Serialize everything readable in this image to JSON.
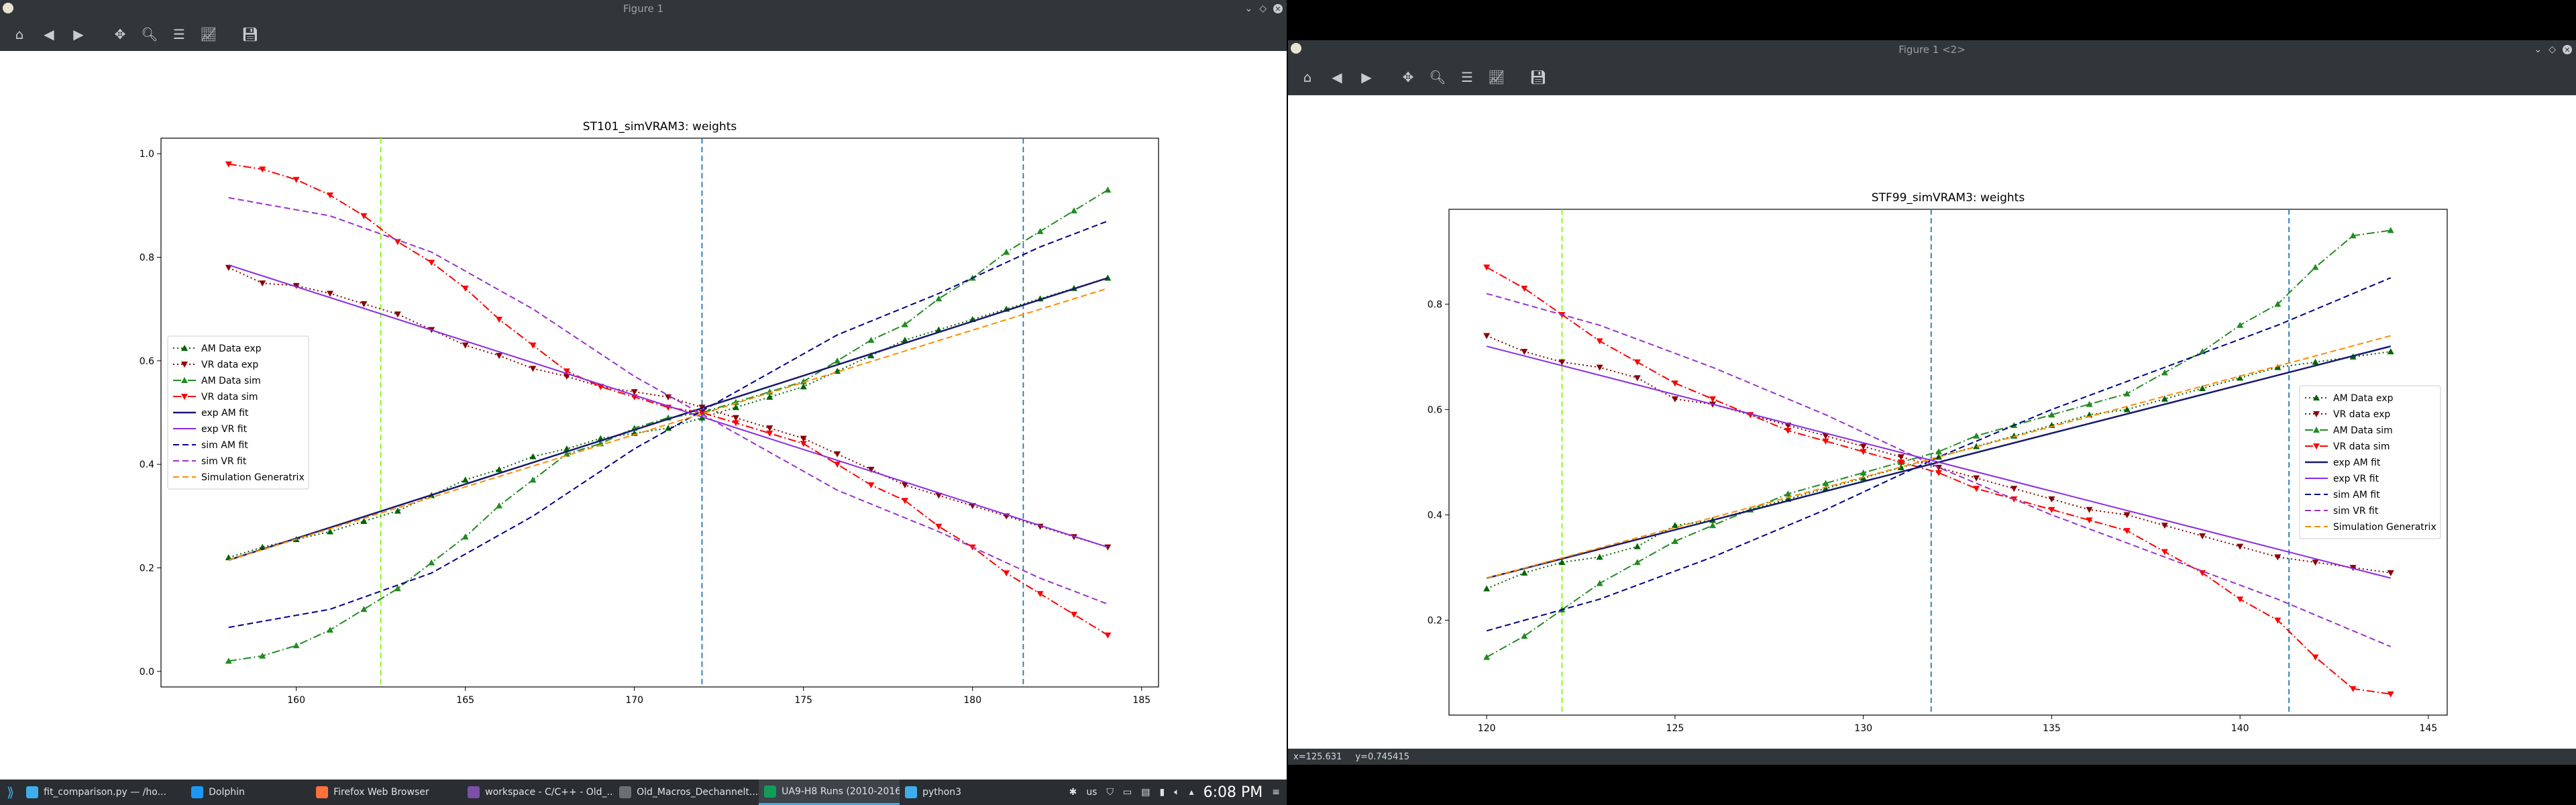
{
  "window1": {
    "title": "Figure 1",
    "toolbar_icons": [
      "home-icon",
      "back-icon",
      "forward-icon",
      "pan-icon",
      "zoom-icon",
      "subplots-icon",
      "edit-axis-icon",
      "save-icon"
    ],
    "status": ""
  },
  "window2": {
    "title": "Figure 1 <2>",
    "toolbar_icons": [
      "home-icon",
      "back-icon",
      "forward-icon",
      "pan-icon",
      "zoom-icon",
      "subplots-icon",
      "edit-axis-icon",
      "save-icon"
    ],
    "status_x": "x=125.631",
    "status_y": "y=0.745415"
  },
  "legend_labels": [
    "AM Data exp",
    "VR data exp",
    "AM Data sim",
    "VR data sim",
    "exp AM fit",
    "exp VR fit",
    "sim AM fit",
    "sim VR fit",
    "Simulation Generatrix"
  ],
  "colors": {
    "am_exp": "#006400",
    "vr_exp": "#8b0000",
    "am_sim": "#228b22",
    "vr_sim": "#ff0000",
    "exp_am_fit": "#191970",
    "exp_vr_fit": "#8a2be2",
    "sim_am_fit": "#00008b",
    "sim_vr_fit": "#9932cc",
    "generatrix": "#ff8c00",
    "vline_green": "#7fff00",
    "vline_blue": "#1f77b4"
  },
  "chart_data": [
    {
      "type": "line",
      "title": "ST101_simVRAM3: weights",
      "xlim": [
        156,
        185.5
      ],
      "ylim": [
        -0.03,
        1.03
      ],
      "xticks": [
        160,
        165,
        170,
        175,
        180,
        185
      ],
      "yticks": [
        0.0,
        0.2,
        0.4,
        0.6,
        0.8,
        1.0
      ],
      "vlines": [
        {
          "x": 162.5,
          "color": "green"
        },
        {
          "x": 172,
          "color": "blue"
        },
        {
          "x": 181.5,
          "color": "blue"
        }
      ],
      "legend_position": "center-left",
      "series": [
        {
          "name": "AM Data exp",
          "x": [
            158,
            159,
            160,
            161,
            162,
            163,
            164,
            165,
            166,
            167,
            168,
            169,
            170,
            171,
            172,
            173,
            174,
            175,
            176,
            177,
            178,
            179,
            180,
            181,
            182,
            183,
            184
          ],
          "y": [
            0.22,
            0.24,
            0.255,
            0.27,
            0.29,
            0.31,
            0.34,
            0.37,
            0.39,
            0.415,
            0.43,
            0.45,
            0.46,
            0.47,
            0.49,
            0.51,
            0.53,
            0.55,
            0.58,
            0.61,
            0.64,
            0.66,
            0.68,
            0.7,
            0.72,
            0.74,
            0.76
          ]
        },
        {
          "name": "VR data exp",
          "x": [
            158,
            159,
            160,
            161,
            162,
            163,
            164,
            165,
            166,
            167,
            168,
            169,
            170,
            171,
            172,
            173,
            174,
            175,
            176,
            177,
            178,
            179,
            180,
            181,
            182,
            183,
            184
          ],
          "y": [
            0.78,
            0.75,
            0.745,
            0.73,
            0.71,
            0.69,
            0.66,
            0.63,
            0.61,
            0.585,
            0.57,
            0.55,
            0.54,
            0.53,
            0.51,
            0.49,
            0.47,
            0.45,
            0.42,
            0.39,
            0.36,
            0.34,
            0.32,
            0.3,
            0.28,
            0.26,
            0.24
          ]
        },
        {
          "name": "AM Data sim",
          "x": [
            158,
            159,
            160,
            161,
            162,
            163,
            164,
            165,
            166,
            167,
            168,
            169,
            170,
            171,
            172,
            173,
            174,
            175,
            176,
            177,
            178,
            179,
            180,
            181,
            182,
            183,
            184
          ],
          "y": [
            0.02,
            0.03,
            0.05,
            0.08,
            0.12,
            0.16,
            0.21,
            0.26,
            0.32,
            0.37,
            0.42,
            0.44,
            0.47,
            0.49,
            0.5,
            0.52,
            0.54,
            0.56,
            0.6,
            0.64,
            0.67,
            0.72,
            0.76,
            0.81,
            0.85,
            0.89,
            0.93
          ]
        },
        {
          "name": "VR data sim",
          "x": [
            158,
            159,
            160,
            161,
            162,
            163,
            164,
            165,
            166,
            167,
            168,
            169,
            170,
            171,
            172,
            173,
            174,
            175,
            176,
            177,
            178,
            179,
            180,
            181,
            182,
            183,
            184
          ],
          "y": [
            0.98,
            0.97,
            0.95,
            0.92,
            0.88,
            0.83,
            0.79,
            0.74,
            0.68,
            0.63,
            0.58,
            0.55,
            0.53,
            0.51,
            0.5,
            0.48,
            0.46,
            0.44,
            0.4,
            0.36,
            0.33,
            0.28,
            0.24,
            0.19,
            0.15,
            0.11,
            0.07
          ]
        },
        {
          "name": "exp AM fit",
          "x": [
            158,
            184
          ],
          "y": [
            0.215,
            0.76
          ]
        },
        {
          "name": "exp VR fit",
          "x": [
            158,
            184
          ],
          "y": [
            0.785,
            0.24
          ]
        },
        {
          "name": "sim AM fit",
          "x": [
            158,
            161,
            164,
            167,
            170,
            173,
            176,
            179,
            182,
            184
          ],
          "y": [
            0.085,
            0.12,
            0.19,
            0.3,
            0.43,
            0.54,
            0.65,
            0.73,
            0.82,
            0.87
          ]
        },
        {
          "name": "sim VR fit",
          "x": [
            158,
            161,
            164,
            167,
            170,
            173,
            176,
            179,
            182,
            184
          ],
          "y": [
            0.915,
            0.88,
            0.81,
            0.7,
            0.57,
            0.46,
            0.35,
            0.27,
            0.18,
            0.13
          ]
        },
        {
          "name": "Simulation Generatrix",
          "x": [
            158,
            184
          ],
          "y": [
            0.215,
            0.74
          ]
        }
      ]
    },
    {
      "type": "line",
      "title": "STF99_simVRAM3: weights",
      "xlim": [
        119,
        145.5
      ],
      "ylim": [
        0.02,
        0.98
      ],
      "xticks": [
        120,
        125,
        130,
        135,
        140,
        145
      ],
      "yticks": [
        0.2,
        0.4,
        0.6,
        0.8
      ],
      "vlines": [
        {
          "x": 122,
          "color": "green"
        },
        {
          "x": 131.8,
          "color": "blue"
        },
        {
          "x": 141.3,
          "color": "blue"
        }
      ],
      "legend_position": "center-right",
      "series": [
        {
          "name": "AM Data exp",
          "x": [
            120,
            121,
            122,
            123,
            124,
            125,
            126,
            127,
            128,
            129,
            130,
            131,
            132,
            133,
            134,
            135,
            136,
            137,
            138,
            139,
            140,
            141,
            142,
            143,
            144
          ],
          "y": [
            0.26,
            0.29,
            0.31,
            0.32,
            0.34,
            0.38,
            0.39,
            0.41,
            0.43,
            0.45,
            0.47,
            0.49,
            0.51,
            0.53,
            0.55,
            0.57,
            0.59,
            0.6,
            0.62,
            0.64,
            0.66,
            0.68,
            0.69,
            0.7,
            0.71
          ]
        },
        {
          "name": "VR data exp",
          "x": [
            120,
            121,
            122,
            123,
            124,
            125,
            126,
            127,
            128,
            129,
            130,
            131,
            132,
            133,
            134,
            135,
            136,
            137,
            138,
            139,
            140,
            141,
            142,
            143,
            144
          ],
          "y": [
            0.74,
            0.71,
            0.69,
            0.68,
            0.66,
            0.62,
            0.61,
            0.59,
            0.57,
            0.55,
            0.53,
            0.51,
            0.49,
            0.47,
            0.45,
            0.43,
            0.41,
            0.4,
            0.38,
            0.36,
            0.34,
            0.32,
            0.31,
            0.3,
            0.29
          ]
        },
        {
          "name": "AM Data sim",
          "x": [
            120,
            121,
            122,
            123,
            124,
            125,
            126,
            127,
            128,
            129,
            130,
            131,
            132,
            133,
            134,
            135,
            136,
            137,
            138,
            139,
            140,
            141,
            142,
            143,
            144
          ],
          "y": [
            0.13,
            0.17,
            0.22,
            0.27,
            0.31,
            0.35,
            0.38,
            0.41,
            0.44,
            0.46,
            0.48,
            0.5,
            0.52,
            0.55,
            0.57,
            0.59,
            0.61,
            0.63,
            0.67,
            0.71,
            0.76,
            0.8,
            0.87,
            0.93,
            0.94
          ]
        },
        {
          "name": "VR data sim",
          "x": [
            120,
            121,
            122,
            123,
            124,
            125,
            126,
            127,
            128,
            129,
            130,
            131,
            132,
            133,
            134,
            135,
            136,
            137,
            138,
            139,
            140,
            141,
            142,
            143,
            144
          ],
          "y": [
            0.87,
            0.83,
            0.78,
            0.73,
            0.69,
            0.65,
            0.62,
            0.59,
            0.56,
            0.54,
            0.52,
            0.5,
            0.48,
            0.45,
            0.43,
            0.41,
            0.39,
            0.37,
            0.33,
            0.29,
            0.24,
            0.2,
            0.13,
            0.07,
            0.06
          ]
        },
        {
          "name": "exp AM fit",
          "x": [
            120,
            144
          ],
          "y": [
            0.28,
            0.72
          ]
        },
        {
          "name": "exp VR fit",
          "x": [
            120,
            144
          ],
          "y": [
            0.72,
            0.28
          ]
        },
        {
          "name": "sim AM fit",
          "x": [
            120,
            123,
            126,
            129,
            132,
            135,
            138,
            141,
            144
          ],
          "y": [
            0.18,
            0.24,
            0.32,
            0.41,
            0.51,
            0.6,
            0.68,
            0.76,
            0.85
          ]
        },
        {
          "name": "sim VR fit",
          "x": [
            120,
            123,
            126,
            129,
            132,
            135,
            138,
            141,
            144
          ],
          "y": [
            0.82,
            0.76,
            0.68,
            0.59,
            0.49,
            0.4,
            0.32,
            0.24,
            0.15
          ]
        },
        {
          "name": "Simulation Generatrix",
          "x": [
            120,
            144
          ],
          "y": [
            0.28,
            0.74
          ]
        }
      ]
    }
  ],
  "taskbar": {
    "items": [
      {
        "label": "fit_comparison.py — /ho...",
        "active": false
      },
      {
        "label": "Dolphin",
        "active": false
      },
      {
        "label": "Firefox Web Browser",
        "active": false
      },
      {
        "label": "workspace - C/C++ - Old_...",
        "active": false
      },
      {
        "label": "Old_Macros_Dechannelt...",
        "active": false
      },
      {
        "label": "UA9-H8 Runs (2010-2016...",
        "active": true
      },
      {
        "label": "python3",
        "active": false
      }
    ],
    "keyboard_layout": "us",
    "clock": "6:08 PM"
  }
}
